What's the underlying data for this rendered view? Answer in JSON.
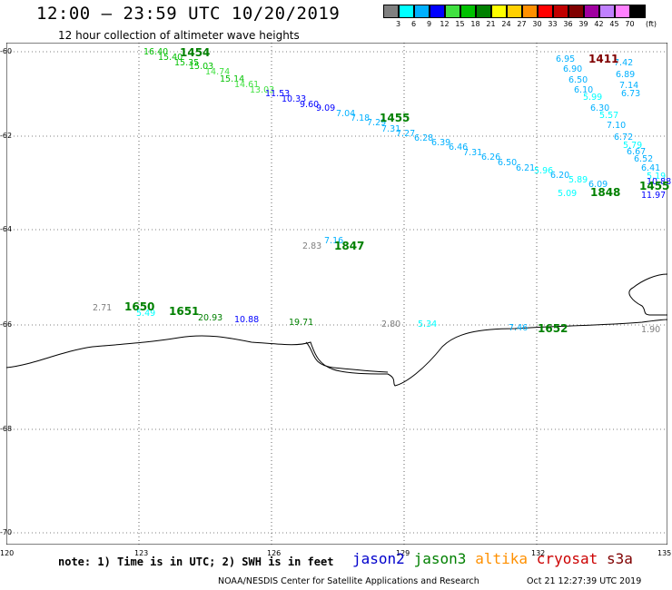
{
  "header": {
    "title": "12:00 – 23:59 UTC 10/20/2019",
    "subtitle": "12 hour collection of altimeter wave heights"
  },
  "legend": {
    "unit": "(ft)",
    "bins": [
      {
        "label": "3",
        "color": "#808080"
      },
      {
        "label": "6",
        "color": "#00ffff"
      },
      {
        "label": "9",
        "color": "#00b0ff"
      },
      {
        "label": "12",
        "color": "#0000ff"
      },
      {
        "label": "15",
        "color": "#40e040"
      },
      {
        "label": "18",
        "color": "#00c000"
      },
      {
        "label": "21",
        "color": "#008000"
      },
      {
        "label": "24",
        "color": "#ffff00"
      },
      {
        "label": "27",
        "color": "#ffd000"
      },
      {
        "label": "30",
        "color": "#ff9000"
      },
      {
        "label": "33",
        "color": "#ff0000"
      },
      {
        "label": "36",
        "color": "#c00000"
      },
      {
        "label": "39",
        "color": "#800000"
      },
      {
        "label": "42",
        "color": "#a000a0"
      },
      {
        "label": "45",
        "color": "#c080ff"
      },
      {
        "label": "70",
        "color": "#ff80ff"
      },
      {
        "label": "",
        "color": "#000000"
      }
    ]
  },
  "axes": {
    "lat_ticks": [
      "-60",
      "-62",
      "-64",
      "-66",
      "-68",
      "-70"
    ],
    "lon_ticks": [
      "120",
      "123",
      "126",
      "129",
      "132",
      "135"
    ]
  },
  "footer": {
    "note": "note: 1) Time is in UTC; 2) SWH is in feet",
    "satellites": [
      {
        "name": "jason2",
        "color": "#0000cc"
      },
      {
        "name": "jason3",
        "color": "#008000"
      },
      {
        "name": "altika",
        "color": "#ff9000"
      },
      {
        "name": "cryosat",
        "color": "#cc0000"
      },
      {
        "name": "s3a",
        "color": "#800000"
      }
    ],
    "credit": "NOAA/NESDIS Center for Satellite Applications and Research",
    "timestamp": "Oct 21 12:27:39 UTC 2019"
  },
  "tracks": [
    {
      "name": "track-1454-1455",
      "time_label": "1454",
      "time_label_2": "1455",
      "values": [
        "16.40",
        "15.40",
        "15.35",
        "15.03",
        "14.74",
        "15.14",
        "14.61",
        "13.03",
        "11.53",
        "10.33",
        "9.60",
        "9.09",
        "7.04",
        "7.18",
        "7.29",
        "7.31",
        "7.27",
        "6.28",
        "6.39",
        "6.46",
        "7.31",
        "6.26",
        "6.50",
        "6.21",
        "5.96",
        "6.20",
        "5.89",
        "6.09",
        "5.09"
      ],
      "time_label_3": "1848"
    },
    {
      "name": "track-1411",
      "time_label": "1411",
      "values": [
        "6.95",
        "6.90",
        "6.50",
        "6.10",
        "5.99",
        "6.30",
        "5.57",
        "7.10",
        "6.72",
        "5.79",
        "6.67",
        "6.52",
        "6.41",
        "5.19",
        "7.42",
        "6.89",
        "7.14",
        "6.73",
        "11.97",
        "10.88"
      ],
      "time_label_2": "1455"
    },
    {
      "name": "track-1847",
      "time_label": "1847",
      "values": [
        "2.83",
        "7.16"
      ]
    },
    {
      "name": "track-1650-1652",
      "time_label": "1650",
      "time_label_2": "1651",
      "time_label_3": "1652",
      "values": [
        "2.71",
        "5.49",
        "20.93",
        "10.88",
        "19.71",
        "2.80",
        "5.34",
        "7.46",
        "1.90"
      ]
    }
  ]
}
